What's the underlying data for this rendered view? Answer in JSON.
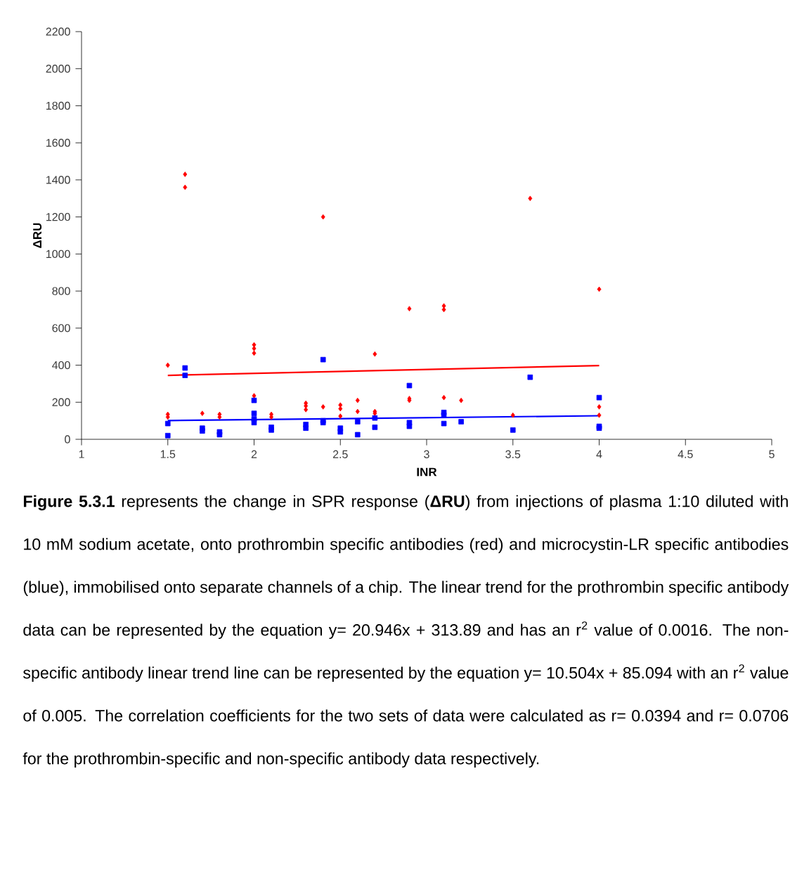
{
  "chart_data": {
    "type": "scatter",
    "xlabel": "INR",
    "ylabel": "ΔRU",
    "xlim": [
      1,
      5
    ],
    "xticks": [
      1,
      1.5,
      2,
      2.5,
      3,
      3.5,
      4,
      4.5,
      5
    ],
    "ylim": [
      0,
      2200
    ],
    "yticks": [
      0,
      200,
      400,
      600,
      800,
      1000,
      1200,
      1400,
      1600,
      1800,
      2000,
      2200
    ],
    "grid": false,
    "series": [
      {
        "color": "#ff0000",
        "marker": "diamond",
        "x": [
          1.5,
          1.5,
          1.5,
          1.6,
          1.6,
          1.7,
          1.8,
          1.8,
          2.0,
          2.0,
          2.0,
          2.0,
          2.1,
          2.1,
          2.3,
          2.3,
          2.3,
          2.4,
          2.4,
          2.5,
          2.5,
          2.5,
          2.6,
          2.6,
          2.7,
          2.7,
          2.7,
          2.9,
          2.9,
          2.9,
          3.1,
          3.1,
          3.1,
          3.2,
          3.5,
          3.6,
          4.0,
          4.0,
          4.0
        ],
        "values": [
          400,
          135,
          120,
          1430,
          1360,
          140,
          135,
          120,
          510,
          490,
          465,
          235,
          135,
          120,
          195,
          180,
          160,
          1200,
          175,
          185,
          165,
          125,
          210,
          150,
          460,
          150,
          140,
          705,
          220,
          210,
          720,
          700,
          225,
          210,
          130,
          1300,
          810,
          175,
          130
        ]
      },
      {
        "color": "#0000ff",
        "marker": "square",
        "x": [
          1.5,
          1.5,
          1.6,
          1.6,
          1.7,
          1.7,
          1.8,
          1.8,
          2.0,
          2.0,
          2.0,
          2.0,
          2.1,
          2.1,
          2.3,
          2.3,
          2.4,
          2.4,
          2.4,
          2.5,
          2.5,
          2.6,
          2.6,
          2.7,
          2.7,
          2.9,
          2.9,
          2.9,
          3.1,
          3.1,
          3.1,
          3.2,
          3.5,
          3.6,
          4.0,
          4.0,
          4.0
        ],
        "values": [
          85,
          20,
          385,
          345,
          60,
          45,
          40,
          25,
          210,
          140,
          110,
          90,
          65,
          50,
          80,
          60,
          430,
          100,
          90,
          60,
          40,
          95,
          25,
          115,
          65,
          290,
          90,
          70,
          145,
          130,
          85,
          95,
          50,
          335,
          225,
          70,
          60
        ]
      },
      {
        "type": "line",
        "color": "#ff0000",
        "marker": "none",
        "line_style": "solid",
        "x": [
          1.5,
          4.0
        ],
        "values": [
          345,
          398
        ]
      },
      {
        "type": "line",
        "color": "#0000ff",
        "marker": "none",
        "line_style": "solid",
        "x": [
          1.5,
          4.0
        ],
        "values": [
          101,
          127
        ]
      }
    ],
    "annotations": [
      "**Figure 5.3.1** represents the change in SPR response (**ΔRU**) from injections of plasma 1:10 diluted with 10 mM sodium acetate, onto prothrombin specific antibodies (red) and microcystin-LR specific antibodies (blue), immobilised onto separate channels of a chip. The linear trend for the prothrombin specific antibody data can be represented by the equation y= 20.946x + 313.89 and has an r$^{2}$ value of 0.0016. The non-specific antibody linear trend line can be represented by the equation y= 10.504x + 85.094 with an r$^{2}$ value of 0.005. The correlation coefficients for the two sets of data were calculated as r= 0.0394 and r= 0.0706 for the prothrombin-specific and non-specific antibody data respectively."
    ]
  }
}
